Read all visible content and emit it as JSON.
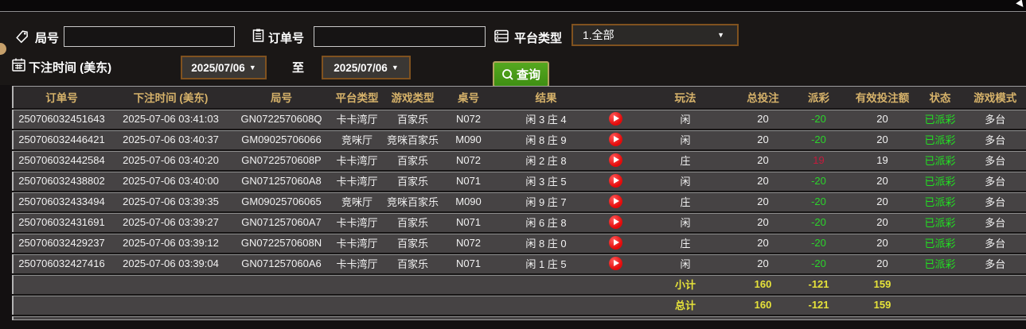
{
  "filters": {
    "round_label": "局号",
    "round_value": "",
    "order_label": "订单号",
    "order_value": "",
    "platform_label": "平台类型",
    "platform_value": "1.全部",
    "bet_time_label": "下注时间 (美东)",
    "date_from": "2025/07/06",
    "to_label": "至",
    "date_to": "2025/07/06",
    "search_label": "查询"
  },
  "table": {
    "headers": [
      "订单号",
      "下注时间 (美东)",
      "局号",
      "平台类型",
      "游戏类型",
      "桌号",
      "结果",
      "",
      "玩法",
      "总投注",
      "派彩",
      "有效投注额",
      "状态",
      "游戏模式"
    ],
    "columns": [
      "order",
      "time",
      "round",
      "platform",
      "game",
      "table_no",
      "result",
      "play",
      "bet_type",
      "total_bet",
      "payout",
      "valid_bet",
      "status",
      "mode"
    ],
    "rows": [
      {
        "order": "250706032451643",
        "time": "2025-07-06 03:41:03",
        "round": "GN0722570608Q",
        "platform": "卡卡湾厅",
        "game": "百家乐",
        "table_no": "N072",
        "result": "闲 3 庄 4",
        "bet_type": "闲",
        "total_bet": "20",
        "payout": "-20",
        "payout_tone": "green",
        "valid_bet": "20",
        "status": "已派彩",
        "mode": "多台"
      },
      {
        "order": "250706032446421",
        "time": "2025-07-06 03:40:37",
        "round": "GM09025706066",
        "platform": "竞咪厅",
        "game": "竞咪百家乐",
        "table_no": "M090",
        "result": "闲 8 庄 9",
        "bet_type": "闲",
        "total_bet": "20",
        "payout": "-20",
        "payout_tone": "green",
        "valid_bet": "20",
        "status": "已派彩",
        "mode": "多台"
      },
      {
        "order": "250706032442584",
        "time": "2025-07-06 03:40:20",
        "round": "GN0722570608P",
        "platform": "卡卡湾厅",
        "game": "百家乐",
        "table_no": "N072",
        "result": "闲 2 庄 8",
        "bet_type": "庄",
        "total_bet": "20",
        "payout": "19",
        "payout_tone": "red",
        "valid_bet": "19",
        "status": "已派彩",
        "mode": "多台"
      },
      {
        "order": "250706032438802",
        "time": "2025-07-06 03:40:00",
        "round": "GN071257060A8",
        "platform": "卡卡湾厅",
        "game": "百家乐",
        "table_no": "N071",
        "result": "闲 3 庄 5",
        "bet_type": "闲",
        "total_bet": "20",
        "payout": "-20",
        "payout_tone": "green",
        "valid_bet": "20",
        "status": "已派彩",
        "mode": "多台"
      },
      {
        "order": "250706032433494",
        "time": "2025-07-06 03:39:35",
        "round": "GM09025706065",
        "platform": "竞咪厅",
        "game": "竞咪百家乐",
        "table_no": "M090",
        "result": "闲 9 庄 7",
        "bet_type": "庄",
        "total_bet": "20",
        "payout": "-20",
        "payout_tone": "green",
        "valid_bet": "20",
        "status": "已派彩",
        "mode": "多台"
      },
      {
        "order": "250706032431691",
        "time": "2025-07-06 03:39:27",
        "round": "GN071257060A7",
        "platform": "卡卡湾厅",
        "game": "百家乐",
        "table_no": "N071",
        "result": "闲 6 庄 8",
        "bet_type": "闲",
        "total_bet": "20",
        "payout": "-20",
        "payout_tone": "green",
        "valid_bet": "20",
        "status": "已派彩",
        "mode": "多台"
      },
      {
        "order": "250706032429237",
        "time": "2025-07-06 03:39:12",
        "round": "GN0722570608N",
        "platform": "卡卡湾厅",
        "game": "百家乐",
        "table_no": "N072",
        "result": "闲 8 庄 0",
        "bet_type": "庄",
        "total_bet": "20",
        "payout": "-20",
        "payout_tone": "green",
        "valid_bet": "20",
        "status": "已派彩",
        "mode": "多台"
      },
      {
        "order": "250706032427416",
        "time": "2025-07-06 03:39:04",
        "round": "GN071257060A6",
        "platform": "卡卡湾厅",
        "game": "百家乐",
        "table_no": "N071",
        "result": "闲 1 庄 5",
        "bet_type": "闲",
        "total_bet": "20",
        "payout": "-20",
        "payout_tone": "green",
        "valid_bet": "20",
        "status": "已派彩",
        "mode": "多台"
      }
    ],
    "subtotal": {
      "label": "小计",
      "total_bet": "160",
      "payout": "-121",
      "valid_bet": "159"
    },
    "total": {
      "label": "总计",
      "total_bet": "160",
      "payout": "-121",
      "valid_bet": "159"
    }
  },
  "colors": {
    "header_text": "#d6b26a",
    "payout_green": "#2bd42b",
    "payout_red": "#c41a3c",
    "status_green": "#22e022",
    "summary_yellow": "#e6e23a",
    "accent_border": "#80521f",
    "search_button_green": "#4a9c17",
    "play_button_red": "#e40b0b"
  }
}
